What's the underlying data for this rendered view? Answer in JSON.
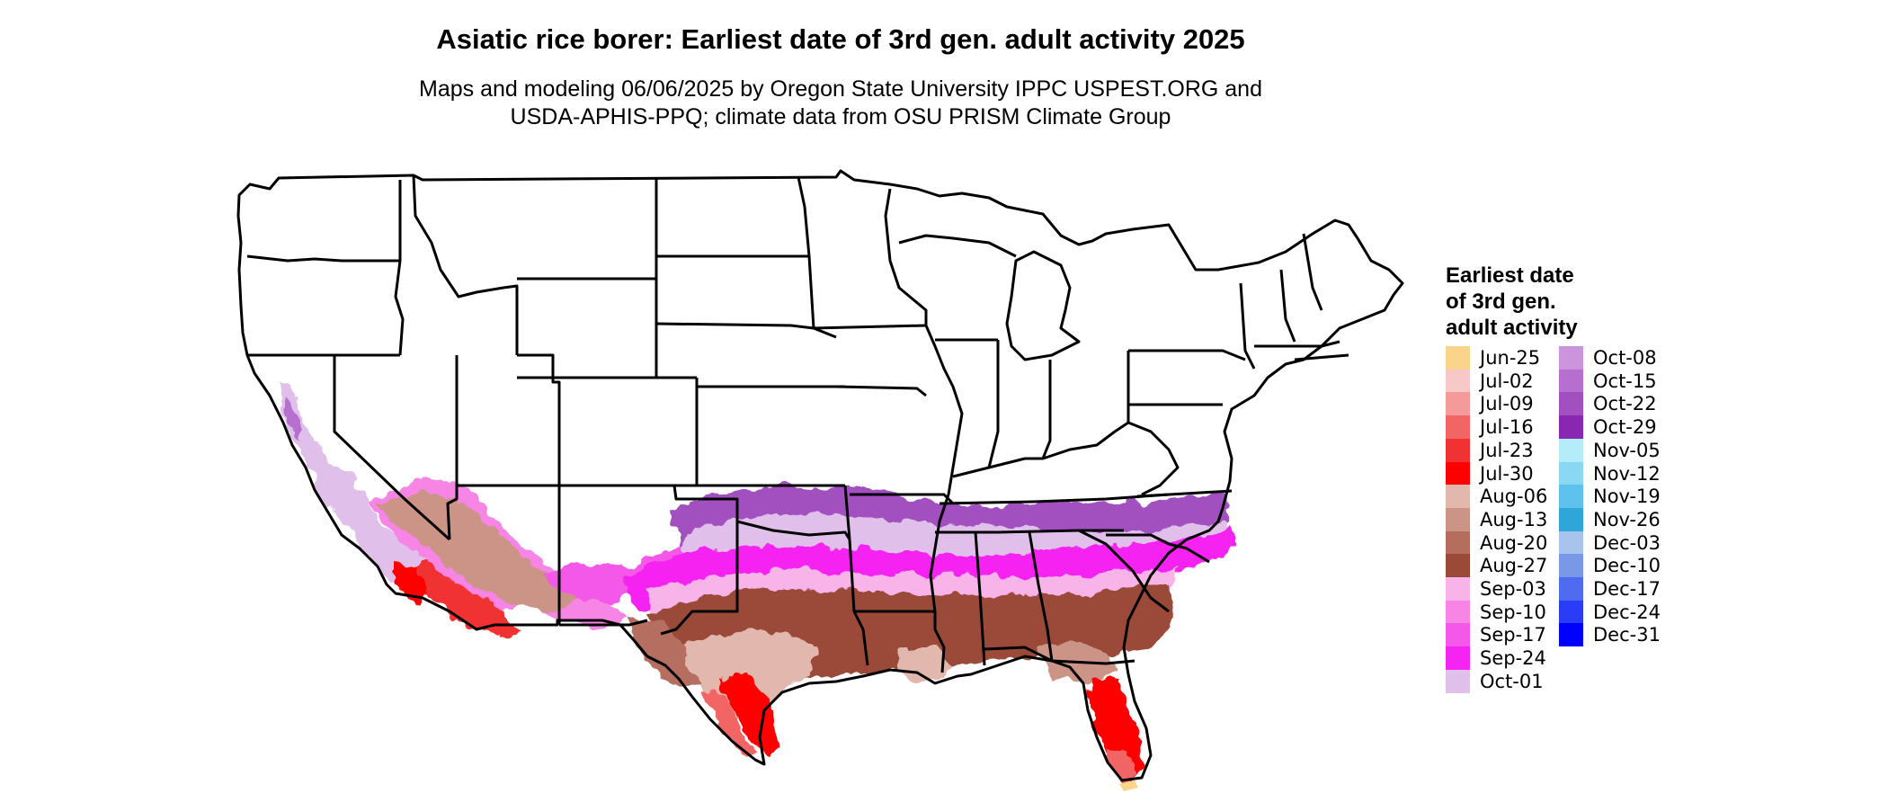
{
  "title": "Asiatic rice borer: Earliest date of 3rd gen. adult activity 2025",
  "subtitle": [
    "Maps and modeling 06/06/2025 by Oregon State University IPPC USPEST.ORG and",
    "USDA-APHIS-PPQ; climate data from OSU PRISM Climate Group"
  ],
  "legend": {
    "title": [
      "Earliest date",
      "of 3rd gen.",
      "adult activity"
    ],
    "items": [
      {
        "label": "Jun-25",
        "color": "#FAD48B"
      },
      {
        "label": "Jul-02",
        "color": "#F6C8C8"
      },
      {
        "label": "Jul-09",
        "color": "#F49A9A"
      },
      {
        "label": "Jul-16",
        "color": "#F26565"
      },
      {
        "label": "Jul-23",
        "color": "#F03232"
      },
      {
        "label": "Jul-30",
        "color": "#FF0000"
      },
      {
        "label": "Aug-06",
        "color": "#E2B7AD"
      },
      {
        "label": "Aug-13",
        "color": "#CC9486"
      },
      {
        "label": "Aug-20",
        "color": "#B56E5E"
      },
      {
        "label": "Aug-27",
        "color": "#9B4A37"
      },
      {
        "label": "Sep-03",
        "color": "#F8B4E8"
      },
      {
        "label": "Sep-10",
        "color": "#F685E6"
      },
      {
        "label": "Sep-17",
        "color": "#F458E8"
      },
      {
        "label": "Sep-24",
        "color": "#F524F2"
      },
      {
        "label": "Oct-01",
        "color": "#E0C0EA"
      },
      {
        "label": "Oct-08",
        "color": "#CC94DC"
      },
      {
        "label": "Oct-15",
        "color": "#B66FCF"
      },
      {
        "label": "Oct-22",
        "color": "#A24FC0"
      },
      {
        "label": "Oct-29",
        "color": "#8A27B2"
      },
      {
        "label": "Nov-05",
        "color": "#B5ECFA"
      },
      {
        "label": "Nov-12",
        "color": "#8AD8F2"
      },
      {
        "label": "Nov-19",
        "color": "#5EC2EC"
      },
      {
        "label": "Nov-26",
        "color": "#2EA6DA"
      },
      {
        "label": "Dec-03",
        "color": "#A9C4EC"
      },
      {
        "label": "Dec-10",
        "color": "#7A98E8"
      },
      {
        "label": "Dec-17",
        "color": "#4F6CF0"
      },
      {
        "label": "Dec-24",
        "color": "#2A3CF6"
      },
      {
        "label": "Dec-31",
        "color": "#0000FF"
      }
    ]
  }
}
